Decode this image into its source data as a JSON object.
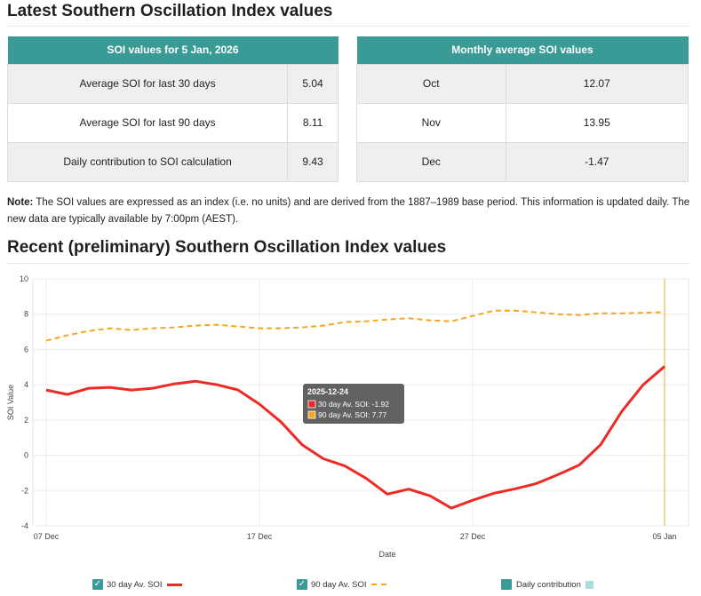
{
  "page": {
    "title": "Latest Southern Oscillation Index values",
    "chart_title": "Recent (preliminary) Southern Oscillation Index values"
  },
  "latest_table": {
    "header": "SOI values for 5 Jan, 2026",
    "rows": [
      {
        "label": "Average SOI for last 30 days",
        "value": "5.04"
      },
      {
        "label": "Average SOI for last 90 days",
        "value": "8.11"
      },
      {
        "label": "Daily contribution to SOI calculation",
        "value": "9.43"
      }
    ]
  },
  "monthly_table": {
    "header": "Monthly average SOI values",
    "rows": [
      {
        "month": "Oct",
        "value": "12.07"
      },
      {
        "month": "Nov",
        "value": "13.95"
      },
      {
        "month": "Dec",
        "value": "-1.47"
      }
    ]
  },
  "note": {
    "bold": "Note:",
    "text": " The SOI values are expressed as an index (i.e. no units) and are derived from the 1887–1989 base period. This information is updated daily. The new data are typically available by 7:00pm (AEST)."
  },
  "tooltip": {
    "date": "2025-12-24",
    "line1": "30 day Av. SOI: -1.92",
    "line2": "90 day Av. SOI: 7.77"
  },
  "legend": {
    "item30": "30 day Av. SOI",
    "item90": "90 day Av. SOI",
    "itemDaily": "Daily contribution",
    "checkmark": "✓"
  },
  "colors": {
    "header_teal": "#3a9a96",
    "series30": "#ee2a24",
    "series90": "#f5a623",
    "daily": "#a9ddd9",
    "cursor": "#f5a623"
  },
  "chart_data": {
    "type": "line",
    "xlabel": "Date",
    "ylabel": "SOI Value",
    "ylim": [
      -4,
      10
    ],
    "yticks": [
      -4,
      -2,
      0,
      2,
      4,
      6,
      8,
      10
    ],
    "xticks": [
      {
        "day": 0,
        "label": "07 Dec"
      },
      {
        "day": 10,
        "label": "17 Dec"
      },
      {
        "day": 20,
        "label": "27 Dec"
      },
      {
        "day": 29,
        "label": "05 Jan"
      }
    ],
    "x_days": [
      0,
      1,
      2,
      3,
      4,
      5,
      6,
      7,
      8,
      9,
      10,
      11,
      12,
      13,
      14,
      15,
      16,
      17,
      18,
      19,
      20,
      21,
      22,
      23,
      24,
      25,
      26,
      27,
      28,
      29
    ],
    "x_start_date": "2025-12-07",
    "series": [
      {
        "name": "30 day Av. SOI",
        "values": [
          3.7,
          3.45,
          3.8,
          3.85,
          3.7,
          3.8,
          4.05,
          4.2,
          4.0,
          3.7,
          2.9,
          1.9,
          0.6,
          -0.2,
          -0.6,
          -1.3,
          -2.2,
          -1.92,
          -2.3,
          -3.0,
          -2.55,
          -2.15,
          -1.9,
          -1.6,
          -1.1,
          -0.55,
          0.6,
          2.5,
          4.0,
          5.04
        ]
      },
      {
        "name": "90 day Av. SOI",
        "values": [
          6.5,
          6.8,
          7.05,
          7.2,
          7.1,
          7.2,
          7.25,
          7.35,
          7.4,
          7.3,
          7.2,
          7.2,
          7.25,
          7.35,
          7.55,
          7.6,
          7.7,
          7.77,
          7.65,
          7.6,
          7.9,
          8.2,
          8.2,
          8.1,
          8.0,
          7.95,
          8.05,
          8.05,
          8.08,
          8.11
        ]
      }
    ],
    "grid": true,
    "tooltip_day": 17,
    "cursor_day": 29
  }
}
